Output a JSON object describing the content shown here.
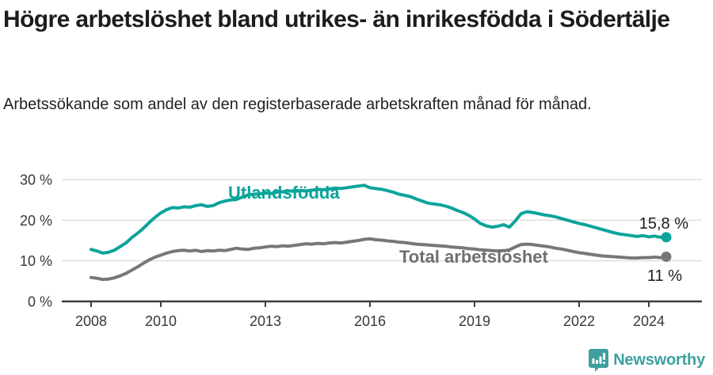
{
  "header": {
    "title": "Högre arbetslöshet bland utrikes- än inrikesfödda i Södertälje",
    "subtitle": "Arbetssökande som andel av den registerbaserade arbetskraften månad för månad."
  },
  "footer": {
    "brand": "Newsworthy",
    "logo_icon": "bar-chart-speech-bubble-icon",
    "brand_color": "#3f9f9f"
  },
  "colors": {
    "series_foreign_born": "#0ca49a",
    "series_total": "#77777a",
    "grid": "#dcdcdc",
    "axis": "#3d3d3d",
    "tick_text": "#383838",
    "value_label_text": "#1c1c1c"
  },
  "chart_data": {
    "type": "line",
    "title": "Högre arbetslöshet bland utrikes- än inrikesfödda i Södertälje",
    "subtitle": "Arbetssökande som andel av den registerbaserade arbetskraften månad för månad.",
    "xlabel": "",
    "ylabel": "",
    "x_unit": "year",
    "x_start": 2008.0,
    "x_step_years": 0.1666667,
    "x_end": 2024.5,
    "x_ticks": [
      2008,
      2010,
      2013,
      2016,
      2019,
      2022,
      2024
    ],
    "y_ticks": [
      0,
      10,
      20,
      30
    ],
    "y_tick_suffix": " %",
    "ylim": [
      0,
      30
    ],
    "grid": true,
    "legend_position": "inline-labels",
    "series": [
      {
        "name": "Utlandsfödda",
        "color": "#0ca49a",
        "end_value_label": "15,8 %",
        "end_value": 15.8,
        "values": [
          12.8,
          12.4,
          11.9,
          12.1,
          12.6,
          13.5,
          14.4,
          15.7,
          16.8,
          18.0,
          19.4,
          20.7,
          21.8,
          22.6,
          23.1,
          23.0,
          23.3,
          23.2,
          23.6,
          23.8,
          23.4,
          23.6,
          24.3,
          24.7,
          25.0,
          25.1,
          25.7,
          26.2,
          26.4,
          26.5,
          26.7,
          26.6,
          26.9,
          27.0,
          27.2,
          27.1,
          27.3,
          27.2,
          27.4,
          27.6,
          27.5,
          27.7,
          27.9,
          27.8,
          28.0,
          28.2,
          28.4,
          28.6,
          28.0,
          27.8,
          27.6,
          27.3,
          26.9,
          26.4,
          26.1,
          25.8,
          25.2,
          24.7,
          24.2,
          24.0,
          23.8,
          23.5,
          23.0,
          22.4,
          21.9,
          21.2,
          20.3,
          19.2,
          18.6,
          18.3,
          18.5,
          18.9,
          18.3,
          19.8,
          21.6,
          22.1,
          21.9,
          21.6,
          21.3,
          21.1,
          20.8,
          20.4,
          20.0,
          19.6,
          19.2,
          18.9,
          18.5,
          18.1,
          17.7,
          17.3,
          16.9,
          16.6,
          16.4,
          16.2,
          16.0,
          16.2,
          15.9,
          16.1,
          15.8,
          15.8
        ]
      },
      {
        "name": "Total arbetslöshet",
        "color": "#77777a",
        "end_value_label": "11 %",
        "end_value": 11.0,
        "values": [
          5.9,
          5.7,
          5.4,
          5.5,
          5.8,
          6.3,
          6.9,
          7.7,
          8.5,
          9.4,
          10.2,
          10.9,
          11.4,
          11.9,
          12.3,
          12.5,
          12.6,
          12.4,
          12.6,
          12.3,
          12.5,
          12.4,
          12.6,
          12.5,
          12.8,
          13.1,
          12.9,
          12.8,
          13.1,
          13.2,
          13.4,
          13.6,
          13.5,
          13.7,
          13.6,
          13.8,
          14.0,
          14.2,
          14.1,
          14.3,
          14.2,
          14.4,
          14.5,
          14.4,
          14.6,
          14.8,
          15.0,
          15.3,
          15.4,
          15.2,
          15.1,
          14.9,
          14.8,
          14.6,
          14.5,
          14.3,
          14.1,
          14.0,
          13.9,
          13.8,
          13.7,
          13.6,
          13.4,
          13.3,
          13.2,
          13.0,
          12.9,
          12.7,
          12.6,
          12.5,
          12.4,
          12.5,
          12.7,
          13.4,
          14.0,
          14.1,
          14.0,
          13.8,
          13.6,
          13.4,
          13.1,
          12.9,
          12.6,
          12.3,
          12.0,
          11.8,
          11.6,
          11.4,
          11.2,
          11.1,
          11.0,
          10.9,
          10.8,
          10.7,
          10.7,
          10.8,
          10.8,
          10.9,
          10.8,
          11.0
        ]
      }
    ]
  }
}
